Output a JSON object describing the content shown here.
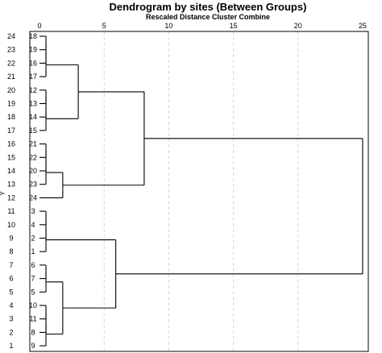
{
  "chart_data": {
    "type": "dendrogram",
    "title": "Dendrogram by sites (Between Groups)",
    "subtitle": "Rescaled Distance Cluster Combine",
    "xlim": [
      0,
      25
    ],
    "x_ticks": [
      "0",
      "5",
      "10",
      "15",
      "20",
      "25"
    ],
    "grid": true,
    "y_axis_label": "Y",
    "leaves": [
      {
        "y": "24",
        "case": "18"
      },
      {
        "y": "23",
        "case": "19"
      },
      {
        "y": "22",
        "case": "16"
      },
      {
        "y": "21",
        "case": "17"
      },
      {
        "y": "20",
        "case": "12"
      },
      {
        "y": "19",
        "case": "13"
      },
      {
        "y": "18",
        "case": "14"
      },
      {
        "y": "17",
        "case": "15"
      },
      {
        "y": "16",
        "case": "21"
      },
      {
        "y": "15",
        "case": "22"
      },
      {
        "y": "14",
        "case": "20"
      },
      {
        "y": "13",
        "case": "23"
      },
      {
        "y": "12",
        "case": "24"
      },
      {
        "y": "11",
        "case": "3"
      },
      {
        "y": "10",
        "case": "4"
      },
      {
        "y": "9",
        "case": "2"
      },
      {
        "y": "8",
        "case": "1"
      },
      {
        "y": "7",
        "case": "6"
      },
      {
        "y": "6",
        "case": "7"
      },
      {
        "y": "5",
        "case": "5"
      },
      {
        "y": "4",
        "case": "10"
      },
      {
        "y": "3",
        "case": "11"
      },
      {
        "y": "2",
        "case": "8"
      },
      {
        "y": "1",
        "case": "9"
      }
    ],
    "merges": [
      {
        "a": 0,
        "b": 1,
        "d": 0.5
      },
      {
        "a": "L0",
        "b": 2,
        "d": 0.5
      },
      {
        "a": "L1",
        "b": 3,
        "d": 0.5
      },
      {
        "a": 4,
        "b": 5,
        "d": 0.5
      },
      {
        "a": "L3",
        "b": 6,
        "d": 0.5
      },
      {
        "a": "L4",
        "b": 7,
        "d": 0.5
      },
      {
        "a": "L2",
        "b": "L5",
        "d": 3.0
      },
      {
        "a": 8,
        "b": 9,
        "d": 0.5
      },
      {
        "a": "L7",
        "b": 10,
        "d": 0.5
      },
      {
        "a": "L8",
        "b": 11,
        "d": 0.5
      },
      {
        "a": "L9",
        "b": 12,
        "d": 1.8
      },
      {
        "a": "L6",
        "b": "L10",
        "d": 8.1
      },
      {
        "a": 13,
        "b": 14,
        "d": 0.5
      },
      {
        "a": "L12",
        "b": 15,
        "d": 0.5
      },
      {
        "a": "L13",
        "b": 16,
        "d": 0.5
      },
      {
        "a": 17,
        "b": 18,
        "d": 0.5
      },
      {
        "a": "L15",
        "b": 19,
        "d": 0.5
      },
      {
        "a": 20,
        "b": 21,
        "d": 0.5
      },
      {
        "a": "L17",
        "b": 22,
        "d": 0.5
      },
      {
        "a": "L18",
        "b": 23,
        "d": 0.5
      },
      {
        "a": "L16",
        "b": "L19",
        "d": 1.8
      },
      {
        "a": "L14",
        "b": "L20",
        "d": 5.9
      },
      {
        "a": "L11",
        "b": "L21",
        "d": 25.0
      }
    ]
  }
}
